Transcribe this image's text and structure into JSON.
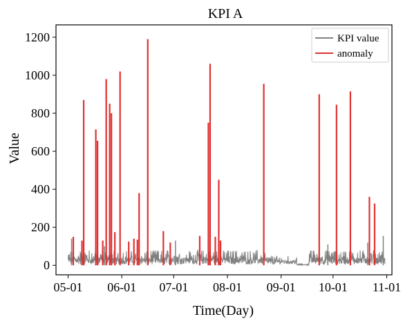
{
  "chart_data": {
    "type": "line",
    "title": "KPI A",
    "xlabel": "Time(Day)",
    "ylabel": "Value",
    "x_ticks": [
      "05-01",
      "06-01",
      "07-01",
      "08-01",
      "09-01",
      "10-01",
      "11-01"
    ],
    "y_ticks": [
      0,
      200,
      400,
      600,
      800,
      1000,
      1200
    ],
    "xlim": [
      "2020-04-24",
      "2020-11-04"
    ],
    "ylim": [
      -50,
      1265
    ],
    "grid": false,
    "legend": "top-right",
    "series": [
      {
        "name": "KPI value",
        "color": "#808080",
        "kind": "baseline_noise",
        "segments": [
          {
            "start": "2020-05-01",
            "end": "2020-08-23",
            "typical_min": 5,
            "typical_max": 80
          },
          {
            "start": "2020-08-23",
            "end": "2020-09-10",
            "typical_min": 5,
            "typical_max": 50
          },
          {
            "start": "2020-09-10",
            "end": "2020-09-17",
            "typical_min": 0,
            "typical_max": 10
          },
          {
            "start": "2020-09-17",
            "end": "2020-10-31",
            "typical_min": 5,
            "typical_max": 80
          }
        ],
        "peaks": [
          {
            "date": "2020-05-03",
            "value": 140
          },
          {
            "date": "2020-05-22",
            "value": 100
          },
          {
            "date": "2020-07-02",
            "value": 130
          },
          {
            "date": "2020-07-22",
            "value": 100
          },
          {
            "date": "2020-09-28",
            "value": 110
          },
          {
            "date": "2020-10-21",
            "value": 120
          },
          {
            "date": "2020-10-30",
            "value": 155
          }
        ]
      },
      {
        "name": "anomaly",
        "color": "#e03030",
        "kind": "spikes",
        "points": [
          {
            "date": "2020-05-04",
            "value": 150
          },
          {
            "date": "2020-05-09",
            "value": 130
          },
          {
            "date": "2020-05-10",
            "value": 870
          },
          {
            "date": "2020-05-17",
            "value": 715
          },
          {
            "date": "2020-05-18",
            "value": 655
          },
          {
            "date": "2020-05-21",
            "value": 130
          },
          {
            "date": "2020-05-23",
            "value": 980
          },
          {
            "date": "2020-05-25",
            "value": 850
          },
          {
            "date": "2020-05-26",
            "value": 800
          },
          {
            "date": "2020-05-28",
            "value": 175
          },
          {
            "date": "2020-05-31",
            "value": 1020
          },
          {
            "date": "2020-06-05",
            "value": 125
          },
          {
            "date": "2020-06-08",
            "value": 140
          },
          {
            "date": "2020-06-10",
            "value": 135
          },
          {
            "date": "2020-06-11",
            "value": 380
          },
          {
            "date": "2020-06-16",
            "value": 1190
          },
          {
            "date": "2020-06-25",
            "value": 180
          },
          {
            "date": "2020-06-29",
            "value": 120
          },
          {
            "date": "2020-07-16",
            "value": 155
          },
          {
            "date": "2020-07-21",
            "value": 750
          },
          {
            "date": "2020-07-22",
            "value": 1060
          },
          {
            "date": "2020-07-25",
            "value": 150
          },
          {
            "date": "2020-07-27",
            "value": 450
          },
          {
            "date": "2020-07-28",
            "value": 130
          },
          {
            "date": "2020-08-22",
            "value": 955
          },
          {
            "date": "2020-09-23",
            "value": 900
          },
          {
            "date": "2020-10-03",
            "value": 845
          },
          {
            "date": "2020-10-11",
            "value": 915
          },
          {
            "date": "2020-10-22",
            "value": 360
          },
          {
            "date": "2020-10-25",
            "value": 325
          }
        ]
      }
    ]
  }
}
